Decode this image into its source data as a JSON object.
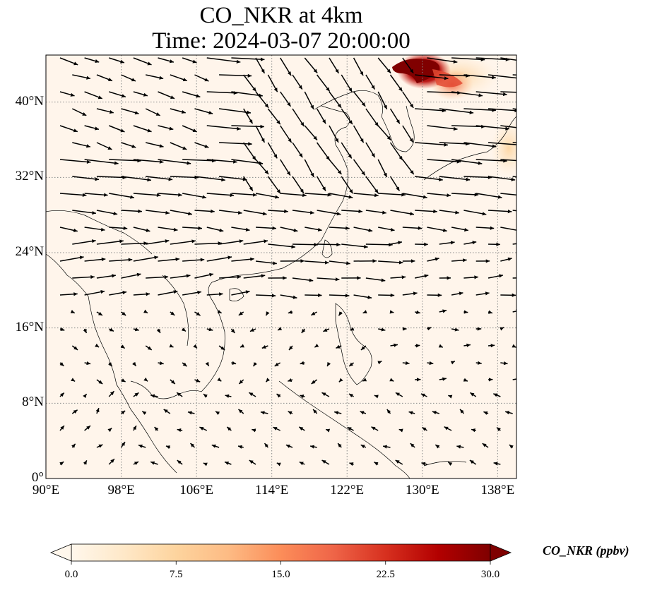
{
  "title": {
    "line1": "CO_NKR at 4km",
    "line2": "Time: 2024-03-07 20:00:00"
  },
  "map": {
    "projection": "PlateCarree",
    "lon_range": [
      90,
      140
    ],
    "lat_range": [
      0,
      45
    ],
    "gridlines": "dotted grey",
    "background_color": "#fff5eb",
    "lat_ticks": [
      {
        "value": 0,
        "label": "0°"
      },
      {
        "value": 8,
        "label": "8°N"
      },
      {
        "value": 16,
        "label": "16°N"
      },
      {
        "value": 24,
        "label": "24°N"
      },
      {
        "value": 32,
        "label": "32°N"
      },
      {
        "value": 40,
        "label": "40°N"
      }
    ],
    "lon_ticks": [
      {
        "value": 90,
        "label": "90°E"
      },
      {
        "value": 98,
        "label": "98°E"
      },
      {
        "value": 106,
        "label": "106°E"
      },
      {
        "value": 114,
        "label": "114°E"
      },
      {
        "value": 122,
        "label": "122°E"
      },
      {
        "value": 130,
        "label": "130°E"
      },
      {
        "value": 138,
        "label": "138°E"
      }
    ],
    "high_concentration_regions": [
      {
        "lon": 129.5,
        "lat": 44.2,
        "level": 30
      },
      {
        "lon": 128.5,
        "lat": 43.6,
        "level": 25
      },
      {
        "lon": 131.5,
        "lat": 43.0,
        "level": 14
      },
      {
        "lon": 133.5,
        "lat": 42.5,
        "level": 9
      },
      {
        "lon": 138.5,
        "lat": 35.5,
        "level": 5
      }
    ]
  },
  "colorbar": {
    "label": "CO_NKR (ppbv)",
    "colormap": "OrRd",
    "range": [
      0,
      30
    ],
    "extend": "both",
    "stops": [
      "#fff7ec",
      "#fee8c8",
      "#fdd49e",
      "#fdbb84",
      "#fc8d59",
      "#ef6548",
      "#d7301f",
      "#b30000",
      "#7f0000"
    ],
    "tick_labels": [
      "0.0",
      "7.5",
      "15.0",
      "22.5",
      "30.0"
    ]
  }
}
